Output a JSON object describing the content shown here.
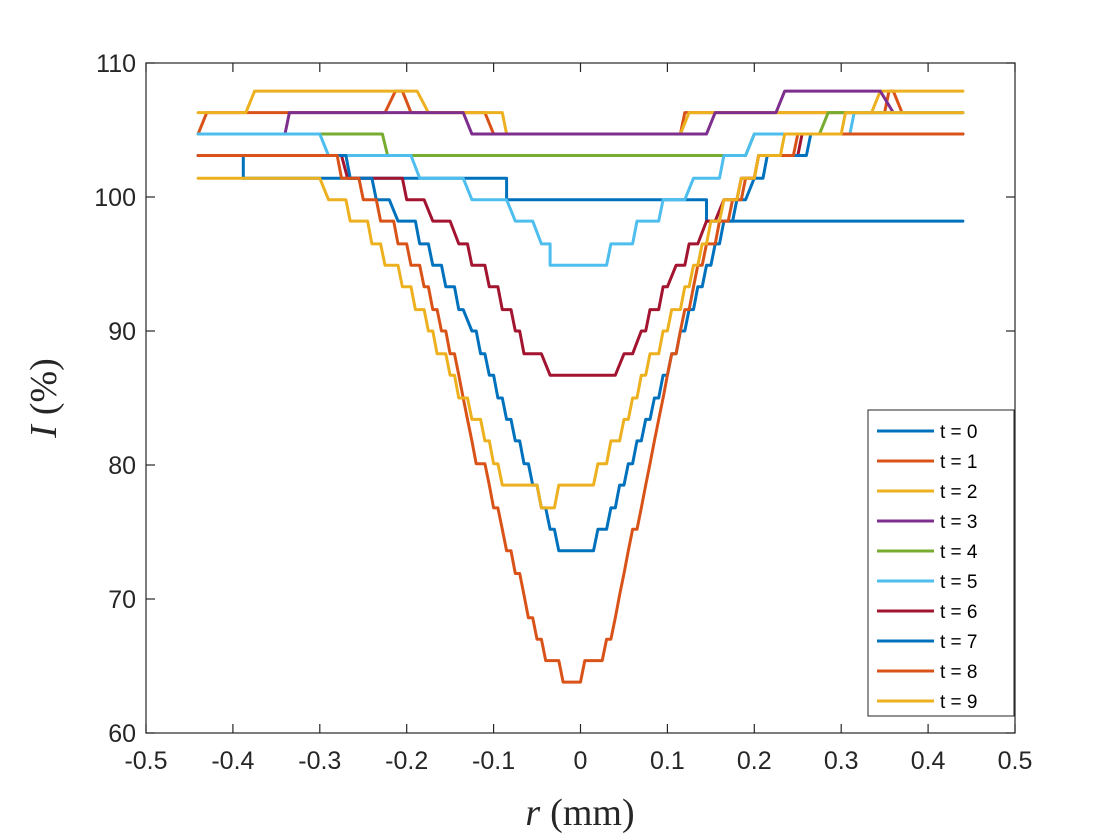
{
  "chart_data": {
    "type": "line",
    "title": "",
    "xlabel_var": "r",
    "xlabel_unit": "(mm)",
    "ylabel_var": "I",
    "ylabel_unit": "(%)",
    "xlim": [
      -0.5,
      0.5
    ],
    "ylim": [
      60,
      110
    ],
    "xticks": [
      -0.5,
      -0.4,
      -0.3,
      -0.2,
      -0.1,
      0,
      0.1,
      0.2,
      0.3,
      0.4,
      0.5
    ],
    "xtick_labels": [
      "-0.5",
      "-0.4",
      "-0.3",
      "-0.2",
      "-0.1",
      "0",
      "0.1",
      "0.2",
      "0.3",
      "0.4",
      "0.5"
    ],
    "yticks": [
      60,
      70,
      80,
      90,
      100,
      110
    ],
    "ytick_labels": [
      "60",
      "70",
      "80",
      "90",
      "100",
      "110"
    ],
    "grid": false,
    "legend_position": "bottom-right",
    "series": [
      {
        "name": "t = 0",
        "color": "#0072BD",
        "points": [
          [
            -0.44,
            103.1
          ],
          [
            -0.388,
            103.1
          ],
          [
            -0.388,
            101.4
          ],
          [
            -0.085,
            101.4
          ],
          [
            -0.085,
            99.8
          ],
          [
            0.145,
            99.8
          ],
          [
            0.145,
            98.2
          ],
          [
            0.44,
            98.2
          ]
        ]
      },
      {
        "name": "t = 1",
        "color": "#D95319",
        "points": [
          [
            -0.44,
            104.7
          ],
          [
            -0.43,
            106.3
          ],
          [
            -0.225,
            106.3
          ],
          [
            -0.213,
            107.9
          ],
          [
            -0.205,
            107.9
          ]
        ]
      },
      {
        "name": "t = 2",
        "color": "#EDB120",
        "points": [
          [
            -0.44,
            106.3
          ],
          [
            -0.385,
            106.3
          ],
          [
            -0.375,
            107.9
          ],
          [
            -0.3,
            107.9
          ]
        ]
      },
      {
        "name": "t = 3",
        "color": "#7E2F8E",
        "points": [
          [
            -0.34,
            104.7
          ],
          [
            -0.335,
            106.3
          ],
          [
            -0.31,
            106.3
          ],
          [
            -0.31,
            106.3
          ],
          [
            -0.315,
            106.3
          ]
        ]
      },
      {
        "name": "t = 4",
        "color": "#77AC30",
        "points": [
          [
            -0.44,
            104.7
          ],
          [
            -0.44,
            104.7
          ]
        ]
      },
      {
        "name": "t = 5",
        "color": "#4DBEEE",
        "points": [
          [
            -0.44,
            104.7
          ],
          [
            -0.44,
            104.7
          ]
        ]
      },
      {
        "name": "t = 6",
        "color": "#A2142F",
        "points": [
          [
            -0.44,
            103.1
          ],
          [
            -0.44,
            103.1
          ]
        ]
      },
      {
        "name": "t = 7",
        "color": "#0072BD",
        "points": [
          [
            -0.44,
            103.1
          ],
          [
            -0.44,
            103.1
          ]
        ]
      },
      {
        "name": "t = 8",
        "color": "#D95319",
        "points": [
          [
            -0.44,
            103.1
          ],
          [
            -0.44,
            103.1
          ]
        ]
      },
      {
        "name": "t = 9",
        "color": "#EDB120",
        "points": [
          [
            -0.44,
            101.4
          ],
          [
            -0.44,
            101.4
          ]
        ]
      }
    ]
  }
}
